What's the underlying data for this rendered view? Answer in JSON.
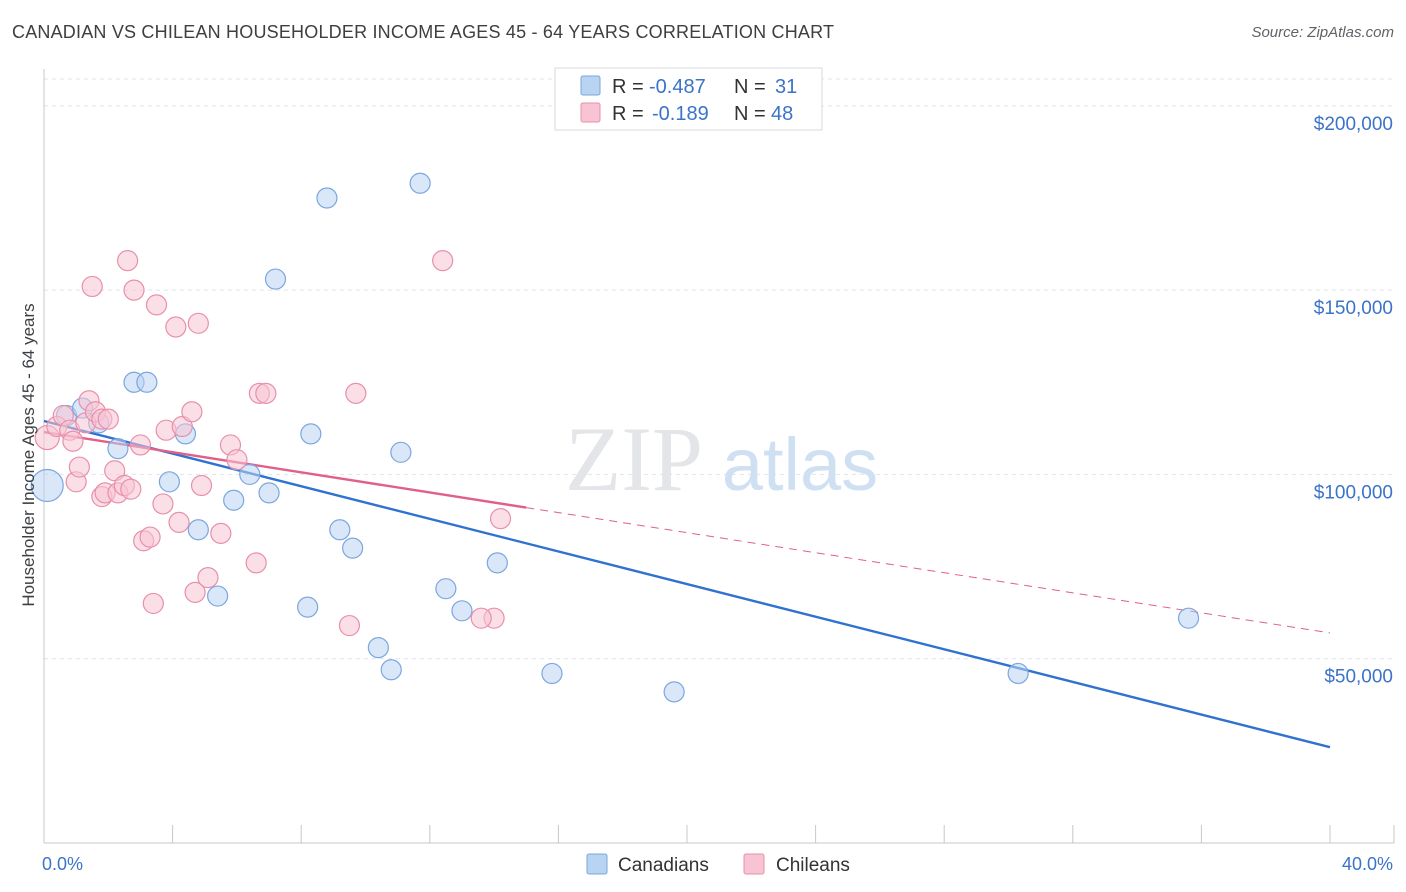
{
  "title": "CANADIAN VS CHILEAN HOUSEHOLDER INCOME AGES 45 - 64 YEARS CORRELATION CHART",
  "source": "Source: ZipAtlas.com",
  "watermark": {
    "zip": "ZIP",
    "atlas": "atlas"
  },
  "colors": {
    "canadian_fill": "#b9d3f3",
    "canadian_stroke": "#7aa7de",
    "canadian_line": "#2f72d0",
    "chilean_fill": "#f8c4d3",
    "chilean_stroke": "#e88fab",
    "chilean_line": "#e0608a",
    "grid": "#dfe3e8",
    "tick_label": "#3b73c9"
  },
  "legend": {
    "rows": [
      {
        "series": "canadians",
        "r_label": "R =",
        "r_value": "-0.487",
        "n_label": "N =",
        "n_value": "31"
      },
      {
        "series": "chileans",
        "r_label": "R =",
        "r_value": "-0.189",
        "n_label": "N =",
        "n_value": "48"
      }
    ]
  },
  "chart_data": {
    "type": "scatter",
    "title": "CANADIAN VS CHILEAN HOUSEHOLDER INCOME AGES 45 - 64 YEARS CORRELATION CHART",
    "xlabel": "",
    "ylabel": "Householder Income Ages 45 - 64 years",
    "xlim": [
      0,
      40
    ],
    "ylim": [
      0,
      210000
    ],
    "x_tick_labels": [
      {
        "value": 0,
        "label": "0.0%"
      },
      {
        "value": 40,
        "label": "40.0%"
      }
    ],
    "y_ticks": [
      {
        "value": 50000,
        "label": "$50,000"
      },
      {
        "value": 100000,
        "label": "$100,000"
      },
      {
        "value": 150000,
        "label": "$150,000"
      },
      {
        "value": 200000,
        "label": "$200,000"
      }
    ],
    "grid": true,
    "legend_position": "top-center",
    "series": [
      {
        "name": "Canadians",
        "color": "#b9d3f3",
        "points": [
          [
            0.1,
            97000,
            16
          ],
          [
            0.7,
            116000,
            10
          ],
          [
            1.2,
            118000,
            10
          ],
          [
            1.7,
            114000,
            10
          ],
          [
            2.3,
            107000,
            10
          ],
          [
            2.8,
            125000,
            10
          ],
          [
            3.2,
            125000,
            10
          ],
          [
            3.9,
            98000,
            10
          ],
          [
            4.4,
            111000,
            10
          ],
          [
            4.8,
            85000,
            10
          ],
          [
            5.4,
            67000,
            10
          ],
          [
            5.9,
            93000,
            10
          ],
          [
            6.4,
            100000,
            10
          ],
          [
            7.0,
            95000,
            10
          ],
          [
            7.2,
            153000,
            10
          ],
          [
            8.2,
            64000,
            10
          ],
          [
            8.3,
            111000,
            10
          ],
          [
            8.8,
            175000,
            10
          ],
          [
            9.2,
            85000,
            10
          ],
          [
            9.6,
            80000,
            10
          ],
          [
            10.4,
            53000,
            10
          ],
          [
            10.8,
            47000,
            10
          ],
          [
            11.1,
            106000,
            10
          ],
          [
            11.7,
            179000,
            10
          ],
          [
            12.5,
            69000,
            10
          ],
          [
            13.0,
            63000,
            10
          ],
          [
            14.1,
            76000,
            10
          ],
          [
            15.8,
            46000,
            10
          ],
          [
            19.6,
            41000,
            10
          ],
          [
            30.3,
            46000,
            10
          ],
          [
            35.6,
            61000,
            10
          ]
        ]
      },
      {
        "name": "Chileans",
        "color": "#f8c4d3",
        "points": [
          [
            0.1,
            110000,
            12
          ],
          [
            0.4,
            113000,
            10
          ],
          [
            0.6,
            116000,
            10
          ],
          [
            0.8,
            112000,
            10
          ],
          [
            0.9,
            109000,
            10
          ],
          [
            1.0,
            98000,
            10
          ],
          [
            1.1,
            102000,
            10
          ],
          [
            1.3,
            114000,
            10
          ],
          [
            1.4,
            120000,
            10
          ],
          [
            1.5,
            151000,
            10
          ],
          [
            1.6,
            117000,
            10
          ],
          [
            1.8,
            115000,
            10
          ],
          [
            1.8,
            94000,
            10
          ],
          [
            1.9,
            95000,
            10
          ],
          [
            2.0,
            115000,
            10
          ],
          [
            2.2,
            101000,
            10
          ],
          [
            2.3,
            95000,
            10
          ],
          [
            2.5,
            97000,
            10
          ],
          [
            2.6,
            158000,
            10
          ],
          [
            2.7,
            96000,
            10
          ],
          [
            2.8,
            150000,
            10
          ],
          [
            3.0,
            108000,
            10
          ],
          [
            3.1,
            82000,
            10
          ],
          [
            3.3,
            83000,
            10
          ],
          [
            3.4,
            65000,
            10
          ],
          [
            3.5,
            146000,
            10
          ],
          [
            3.7,
            92000,
            10
          ],
          [
            3.8,
            112000,
            10
          ],
          [
            4.1,
            140000,
            10
          ],
          [
            4.2,
            87000,
            10
          ],
          [
            4.3,
            113000,
            10
          ],
          [
            4.6,
            117000,
            10
          ],
          [
            4.7,
            68000,
            10
          ],
          [
            4.8,
            141000,
            10
          ],
          [
            4.9,
            97000,
            10
          ],
          [
            5.1,
            72000,
            10
          ],
          [
            5.5,
            84000,
            10
          ],
          [
            5.8,
            108000,
            10
          ],
          [
            6.0,
            104000,
            10
          ],
          [
            6.6,
            76000,
            10
          ],
          [
            6.7,
            122000,
            10
          ],
          [
            6.9,
            122000,
            10
          ],
          [
            9.5,
            59000,
            10
          ],
          [
            9.7,
            122000,
            10
          ],
          [
            12.4,
            158000,
            10
          ],
          [
            14.0,
            61000,
            10
          ],
          [
            14.2,
            88000,
            10
          ],
          [
            13.6,
            61000,
            10
          ]
        ]
      }
    ],
    "trend_lines": [
      {
        "series": "Canadians",
        "x": [
          0,
          40
        ],
        "y": [
          114500,
          26000
        ],
        "style": "solid"
      },
      {
        "series": "Chileans",
        "x": [
          0,
          15
        ],
        "y": [
          111500,
          91000
        ],
        "style": "solid"
      },
      {
        "series": "Chileans",
        "x": [
          15,
          40
        ],
        "y": [
          91000,
          57000
        ],
        "style": "dashed"
      }
    ]
  },
  "bottom_legend": [
    {
      "series": "canadians",
      "label": "Canadians"
    },
    {
      "series": "chileans",
      "label": "Chileans"
    }
  ]
}
